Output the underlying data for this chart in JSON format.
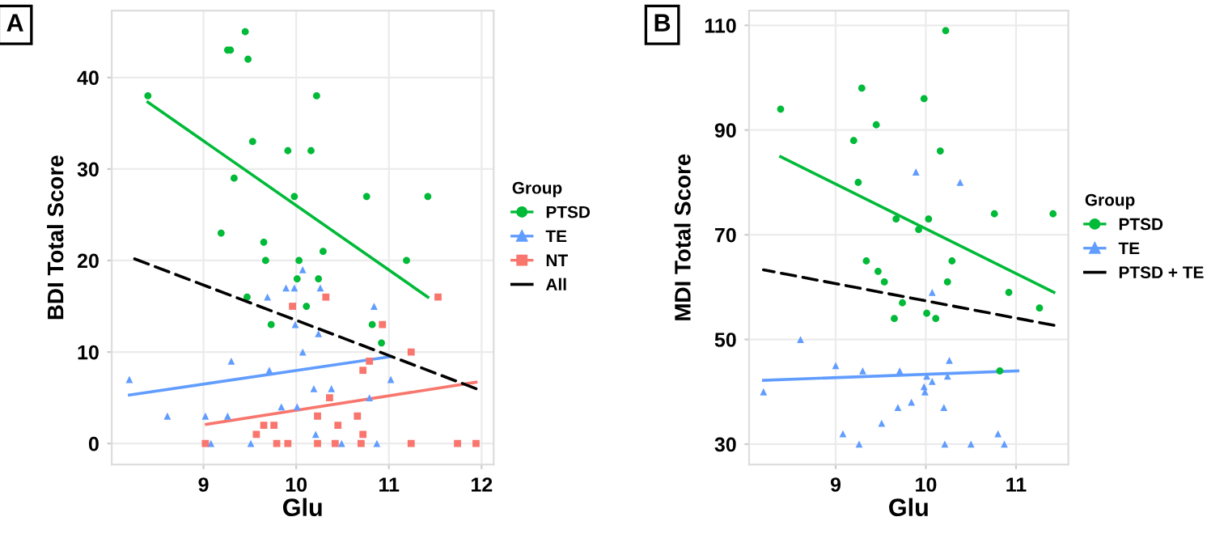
{
  "chart_data": [
    {
      "type": "scatter",
      "title": "A",
      "xlabel": "Glu",
      "ylabel": "BDI Total Score",
      "legend_title": "Group",
      "legend": "right",
      "grid": true,
      "xlim": [
        8.01,
        12.13
      ],
      "ylim": [
        -2.3,
        47.3
      ],
      "xticks": [
        9,
        10,
        11,
        12
      ],
      "yticks": [
        0,
        10,
        20,
        30,
        40
      ],
      "series": [
        {
          "name": "PTSD",
          "color": "#00ba38",
          "marker": "circle",
          "x": [
            8.4,
            9.26,
            9.29,
            9.45,
            9.48,
            10.22,
            9.53,
            9.91,
            10.16,
            9.33,
            9.98,
            10.76,
            11.42,
            9.19,
            9.65,
            9.67,
            10.03,
            10.29,
            10.01,
            10.24,
            9.47,
            10.11,
            9.73,
            10.82,
            10.92,
            11.19
          ],
          "values": [
            38,
            43,
            43,
            45,
            42,
            38,
            33,
            32,
            32,
            29,
            27,
            27,
            27,
            23,
            22,
            20,
            20,
            21,
            18,
            18,
            16,
            15,
            13,
            13,
            11,
            20
          ]
        },
        {
          "name": "TE",
          "color": "#619cff",
          "marker": "triangle",
          "x": [
            8.2,
            8.61,
            9.02,
            9.08,
            9.26,
            9.3,
            9.51,
            9.69,
            9.71,
            9.84,
            9.89,
            9.98,
            9.99,
            10.01,
            10.07,
            10.07,
            10.19,
            10.21,
            10.24,
            10.26,
            10.38,
            10.49,
            10.79,
            10.84,
            10.87,
            11.02
          ],
          "values": [
            7,
            3,
            3,
            0,
            3,
            9,
            0,
            16,
            8,
            4,
            17,
            17,
            13,
            4,
            19,
            10,
            6,
            1,
            12,
            17,
            6,
            0,
            5,
            15,
            0,
            7
          ]
        },
        {
          "name": "NT",
          "color": "#f8766d",
          "marker": "square",
          "x": [
            9.02,
            9.57,
            9.65,
            9.76,
            9.79,
            9.91,
            9.96,
            10.23,
            10.23,
            10.32,
            10.36,
            10.42,
            10.45,
            10.66,
            10.7,
            10.72,
            10.72,
            10.79,
            10.93,
            11.24,
            11.24,
            11.53,
            11.74,
            11.94
          ],
          "values": [
            0,
            1,
            2,
            2,
            0,
            0,
            15,
            3,
            0,
            16,
            5,
            0,
            2,
            3,
            0,
            1,
            8,
            9,
            13,
            10,
            0,
            16,
            0,
            0
          ]
        },
        {
          "type": "line",
          "color": "#00ba38",
          "line_style": "solid",
          "x": [
            8.4,
            11.42
          ],
          "values": [
            37.3,
            16
          ]
        },
        {
          "type": "line",
          "color": "#619cff",
          "line_style": "solid",
          "x": [
            8.2,
            11.02
          ],
          "values": [
            5.3,
            9.5
          ]
        },
        {
          "type": "line",
          "color": "#f8766d",
          "line_style": "solid",
          "x": [
            9.03,
            11.94
          ],
          "values": [
            2.1,
            6.7
          ]
        },
        {
          "type": "line",
          "name": "All",
          "color": "#000000",
          "line_style": "dashed",
          "x": [
            8.2,
            11.94
          ],
          "values": [
            20.4,
            6.0
          ]
        }
      ]
    },
    {
      "type": "scatter",
      "title": "B",
      "xlabel": "Glu",
      "ylabel": "MDI Total Score",
      "legend_title": "Group",
      "legend": "right",
      "grid": true,
      "xlim": [
        8.04,
        11.58
      ],
      "ylim": [
        26.1,
        112.8
      ],
      "xticks": [
        9,
        10,
        11
      ],
      "yticks": [
        30,
        50,
        70,
        90,
        110
      ],
      "series": [
        {
          "name": "PTSD",
          "color": "#00ba38",
          "marker": "circle",
          "x": [
            8.39,
            9.29,
            10.22,
            9.98,
            9.45,
            9.2,
            10.16,
            9.25,
            10.76,
            9.67,
            10.03,
            9.92,
            11.41,
            9.34,
            9.47,
            9.54,
            9.74,
            9.65,
            10.01,
            10.11,
            10.24,
            10.29,
            10.82,
            10.92,
            11.26
          ],
          "values": [
            94,
            98,
            109,
            96,
            91,
            88,
            86,
            80,
            74,
            73,
            73,
            71,
            74,
            65,
            63,
            61,
            57,
            54,
            55,
            54,
            61,
            65,
            44,
            59,
            56
          ]
        },
        {
          "name": "TE",
          "color": "#619cff",
          "marker": "triangle",
          "x": [
            9.89,
            10.38,
            8.2,
            8.61,
            9.0,
            9.08,
            9.26,
            9.3,
            9.51,
            9.69,
            9.71,
            9.84,
            9.98,
            9.99,
            10.01,
            10.07,
            10.07,
            10.2,
            10.21,
            10.24,
            10.26,
            10.5,
            10.8,
            10.87
          ],
          "values": [
            82,
            80,
            40,
            50,
            45,
            32,
            30,
            44,
            34,
            37,
            44,
            38,
            41,
            40,
            43,
            42,
            59,
            37,
            30,
            43,
            46,
            30,
            32,
            30
          ]
        },
        {
          "type": "line",
          "color": "#00ba38",
          "line_style": "solid",
          "x": [
            8.39,
            11.42
          ],
          "values": [
            84.9,
            59
          ]
        },
        {
          "type": "line",
          "color": "#619cff",
          "line_style": "solid",
          "x": [
            8.2,
            11.02
          ],
          "values": [
            42.2,
            44
          ]
        },
        {
          "type": "line",
          "name": "PTSD + TE",
          "color": "#000000",
          "line_style": "dashed",
          "x": [
            8.2,
            11.42
          ],
          "values": [
            63.3,
            52.7
          ]
        }
      ]
    }
  ]
}
